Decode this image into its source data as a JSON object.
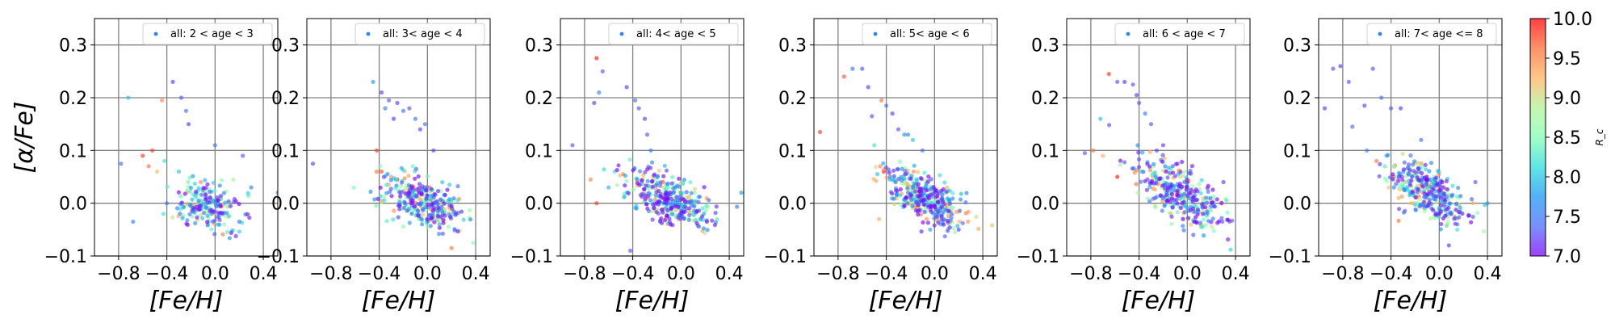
{
  "chart_data": {
    "type": "scatter",
    "xlabel": "[Fe/H]",
    "ylabel": "[α/Fe]",
    "xlim": [
      -1.0,
      0.52
    ],
    "ylim": [
      -0.1,
      0.35
    ],
    "xticks": [
      "−0.8",
      "−0.4",
      "0.0",
      "0.4"
    ],
    "xtick_values": [
      -0.8,
      -0.4,
      0.0,
      0.4
    ],
    "yticks": [
      "−0.1",
      "0.0",
      "0.1",
      "0.2",
      "0.3"
    ],
    "ytick_values": [
      -0.1,
      0.0,
      0.1,
      0.2,
      0.3
    ],
    "grid": true,
    "legend_placement": "top-right",
    "colormap": "rainbow",
    "colorbar": {
      "label": "R_c",
      "range": [
        7.0,
        10.0
      ],
      "ticks": [
        "7.0",
        "7.5",
        "8.0",
        "8.5",
        "9.0",
        "9.5",
        "10.0"
      ],
      "tick_values": [
        7.0,
        7.5,
        8.0,
        8.5,
        9.0,
        9.5,
        10.0
      ]
    },
    "panels": [
      {
        "legend": "all: 2 < age < 3",
        "points": [
          [
            -0.72,
            0.2,
            8.0
          ],
          [
            -0.52,
            0.1,
            9.8
          ],
          [
            -0.44,
            0.195,
            9.5
          ],
          [
            -0.35,
            0.23,
            7.2
          ],
          [
            -0.28,
            0.2,
            7.3
          ],
          [
            -0.24,
            0.175,
            7.5
          ],
          [
            -0.22,
            0.15,
            7.2
          ],
          [
            -0.78,
            0.075,
            7.4
          ],
          [
            -0.68,
            -0.035,
            7.6
          ],
          [
            -0.4,
            0.0,
            7.5
          ],
          [
            0.0,
            0.11,
            7.4
          ],
          [
            0.23,
            0.09,
            7.3
          ],
          [
            0.52,
            0.02,
            7.6
          ],
          [
            -0.6,
            0.09,
            9.8
          ],
          [
            -0.55,
            0.07,
            9.6
          ],
          [
            -0.48,
            0.06,
            9.2
          ],
          [
            -0.42,
            0.08,
            8.2
          ],
          [
            -0.3,
            0.06,
            8.0
          ],
          [
            0.15,
            0.045,
            8.8
          ],
          [
            0.3,
            0.03,
            7.6
          ]
        ],
        "cluster": {
          "cx": -0.05,
          "cy": -0.005,
          "sx": 0.14,
          "sy": 0.022,
          "slope": -0.06,
          "n": 200,
          "seed": 11
        }
      },
      {
        "legend": "all: 3< age < 4",
        "points": [
          [
            -0.95,
            0.075,
            7.2
          ],
          [
            -0.45,
            0.23,
            7.8
          ],
          [
            -0.38,
            0.21,
            7.2
          ],
          [
            -0.32,
            0.195,
            7.3
          ],
          [
            -0.25,
            0.19,
            7.2
          ],
          [
            -0.2,
            0.175,
            7.4
          ],
          [
            -0.15,
            0.18,
            7.3
          ],
          [
            -0.1,
            0.16,
            7.5
          ],
          [
            -0.06,
            0.14,
            7.2
          ],
          [
            -0.02,
            0.15,
            7.4
          ],
          [
            -0.28,
            0.16,
            7.2
          ],
          [
            -0.35,
            0.18,
            7.6
          ],
          [
            -0.42,
            0.1,
            9.8
          ],
          [
            -0.38,
            0.06,
            9.7
          ],
          [
            -0.3,
            0.05,
            9.4
          ],
          [
            -0.25,
            0.045,
            9.9
          ],
          [
            -0.12,
            0.07,
            8.4
          ],
          [
            0.1,
            -0.04,
            7.9
          ],
          [
            0.2,
            -0.085,
            9.6
          ],
          [
            0.05,
            0.1,
            7.2
          ]
        ],
        "cluster": {
          "cx": -0.03,
          "cy": 0.0,
          "sx": 0.16,
          "sy": 0.022,
          "slope": -0.07,
          "n": 320,
          "seed": 23
        }
      },
      {
        "legend": "all: 4< age < 5",
        "points": [
          [
            -0.7,
            0.275,
            9.9
          ],
          [
            -0.68,
            0.21,
            7.6
          ],
          [
            -0.65,
            0.25,
            7.3
          ],
          [
            -0.72,
            0.19,
            7.2
          ],
          [
            -0.45,
            0.22,
            7.2
          ],
          [
            -0.38,
            0.195,
            7.4
          ],
          [
            -0.35,
            0.18,
            7.3
          ],
          [
            -0.3,
            0.16,
            7.2
          ],
          [
            -0.28,
            0.13,
            7.3
          ],
          [
            -0.25,
            0.1,
            7.5
          ],
          [
            -0.9,
            0.11,
            7.3
          ],
          [
            -0.75,
            0.045,
            9.5
          ],
          [
            -0.7,
            0.0,
            9.8
          ],
          [
            -0.42,
            -0.09,
            7.3
          ],
          [
            -0.55,
            0.06,
            8.2
          ],
          [
            -0.48,
            0.055,
            9.6
          ],
          [
            -0.15,
            0.04,
            9.8
          ],
          [
            0.3,
            -0.03,
            8.3
          ],
          [
            0.5,
            0.02,
            7.8
          ],
          [
            -0.6,
            0.03,
            7.9
          ]
        ],
        "cluster": {
          "cx": -0.08,
          "cy": 0.005,
          "sx": 0.18,
          "sy": 0.022,
          "slope": -0.09,
          "n": 340,
          "seed": 37
        }
      },
      {
        "legend": "all: 5< age < 6",
        "points": [
          [
            -0.95,
            0.135,
            9.8
          ],
          [
            -0.75,
            0.24,
            9.7
          ],
          [
            -0.68,
            0.255,
            7.5
          ],
          [
            -0.6,
            0.255,
            7.3
          ],
          [
            -0.55,
            0.22,
            7.2
          ],
          [
            -0.52,
            0.165,
            7.3
          ],
          [
            -0.44,
            0.195,
            9.6
          ],
          [
            -0.4,
            0.185,
            7.4
          ],
          [
            -0.35,
            0.17,
            7.2
          ],
          [
            -0.3,
            0.14,
            7.3
          ],
          [
            -0.25,
            0.13,
            7.6
          ],
          [
            -0.18,
            0.12,
            8.0
          ],
          [
            -0.1,
            0.1,
            7.4
          ],
          [
            -0.5,
            0.11,
            8.2
          ],
          [
            -0.45,
            0.07,
            9.5
          ],
          [
            -0.42,
            0.06,
            9.9
          ],
          [
            -0.46,
            -0.03,
            9.3
          ],
          [
            0.05,
            -0.04,
            7.9
          ],
          [
            0.2,
            -0.05,
            7.2
          ],
          [
            -0.22,
            0.13,
            7.6
          ]
        ],
        "cluster": {
          "cx": -0.08,
          "cy": 0.01,
          "sx": 0.16,
          "sy": 0.022,
          "slope": -0.1,
          "n": 360,
          "seed": 51
        }
      },
      {
        "legend": "all: 6 < age < 7",
        "points": [
          [
            -0.85,
            0.095,
            7.3
          ],
          [
            -0.72,
            0.16,
            8.0
          ],
          [
            -0.65,
            0.245,
            9.8
          ],
          [
            -0.58,
            0.23,
            7.3
          ],
          [
            -0.52,
            0.23,
            7.2
          ],
          [
            -0.45,
            0.225,
            7.3
          ],
          [
            -0.42,
            0.205,
            7.2
          ],
          [
            -0.4,
            0.19,
            7.3
          ],
          [
            -0.35,
            0.17,
            7.6
          ],
          [
            -0.3,
            0.15,
            7.3
          ],
          [
            -0.78,
            0.1,
            9.6
          ],
          [
            -0.7,
            0.09,
            9.3
          ],
          [
            -0.58,
            0.05,
            9.9
          ],
          [
            -0.2,
            0.11,
            7.2
          ],
          [
            -0.08,
            0.075,
            7.4
          ],
          [
            0.05,
            -0.06,
            7.3
          ],
          [
            0.15,
            -0.02,
            8.2
          ],
          [
            -0.25,
            0.045,
            9.7
          ],
          [
            -0.18,
            0.06,
            9.4
          ],
          [
            0.3,
            0.04,
            7.2
          ]
        ],
        "cluster": {
          "cx": -0.06,
          "cy": 0.015,
          "sx": 0.17,
          "sy": 0.024,
          "slope": -0.11,
          "n": 330,
          "seed": 67
        }
      },
      {
        "legend": "all: 7< age <= 8",
        "points": [
          [
            -0.95,
            0.18,
            7.2
          ],
          [
            -0.88,
            0.255,
            7.3
          ],
          [
            -0.82,
            0.26,
            7.2
          ],
          [
            -0.75,
            0.23,
            7.3
          ],
          [
            -0.72,
            0.145,
            7.4
          ],
          [
            -0.62,
            0.185,
            7.2
          ],
          [
            -0.55,
            0.255,
            7.3
          ],
          [
            -0.48,
            0.2,
            7.4
          ],
          [
            -0.4,
            0.18,
            7.3
          ],
          [
            -0.32,
            0.18,
            7.2
          ],
          [
            -0.6,
            0.1,
            7.6
          ],
          [
            -0.52,
            0.08,
            9.6
          ],
          [
            -0.45,
            0.07,
            8.3
          ],
          [
            -0.15,
            0.12,
            7.4
          ],
          [
            0.08,
            -0.08,
            7.2
          ],
          [
            0.15,
            -0.05,
            8.2
          ],
          [
            0.3,
            0.04,
            7.3
          ],
          [
            -0.38,
            0.05,
            9.7
          ],
          [
            -0.28,
            0.04,
            9.4
          ],
          [
            0.4,
            0.0,
            7.8
          ]
        ],
        "cluster": {
          "cx": -0.08,
          "cy": 0.02,
          "sx": 0.17,
          "sy": 0.024,
          "slope": -0.12,
          "n": 340,
          "seed": 79
        }
      }
    ]
  }
}
